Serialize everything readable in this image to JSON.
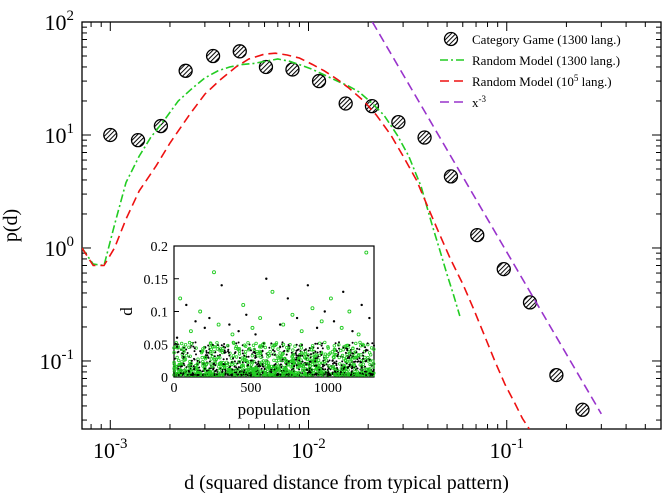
{
  "chart_data": [
    {
      "type": "scatter",
      "xlabel": "d (squared distance from typical pattern)",
      "ylabel": "p(d)",
      "xscale": "log",
      "yscale": "log",
      "xlim": [
        0.00072,
        0.6
      ],
      "ylim": [
        0.025,
        100
      ],
      "xticks": [
        {
          "value": 0.001,
          "base": "10",
          "exp": "-3"
        },
        {
          "value": 0.01,
          "base": "10",
          "exp": "-2"
        },
        {
          "value": 0.1,
          "base": "10",
          "exp": "-1"
        }
      ],
      "yticks": [
        {
          "value": 0.1,
          "base": "10",
          "exp": "-1"
        },
        {
          "value": 1,
          "base": "10",
          "exp": "0"
        },
        {
          "value": 10,
          "base": "10",
          "exp": "1"
        },
        {
          "value": 100,
          "base": "10",
          "exp": "2"
        }
      ],
      "legend_position": "top-right",
      "grid": false,
      "series": [
        {
          "name": "Category Game (1300 lang.)",
          "style": "hatched-circle",
          "color": "#000000",
          "x": [
            0.001,
            0.00138,
            0.0018,
            0.0024,
            0.0033,
            0.0045,
            0.0061,
            0.0083,
            0.0113,
            0.0154,
            0.0209,
            0.0284,
            0.0385,
            0.0523,
            0.071,
            0.0966,
            0.131,
            0.178,
            0.241
          ],
          "y": [
            10,
            9,
            12,
            37,
            50,
            55,
            40,
            38,
            30,
            19,
            18,
            13,
            9.5,
            4.3,
            1.3,
            0.65,
            0.33,
            0.075,
            0.037
          ]
        },
        {
          "name": "Random Model (1300 lang.)",
          "style": "dash-dot",
          "color": "#22cc22",
          "x": [
            0.00072,
            0.00082,
            0.00093,
            0.00105,
            0.0012,
            0.0014,
            0.0016,
            0.0019,
            0.0022,
            0.0026,
            0.003,
            0.0035,
            0.004,
            0.0046,
            0.0053,
            0.0061,
            0.007,
            0.008,
            0.009,
            0.0105,
            0.012,
            0.014,
            0.016,
            0.018,
            0.021,
            0.024,
            0.028,
            0.032,
            0.037,
            0.042,
            0.046,
            0.05,
            0.054,
            0.058
          ],
          "y": [
            1.0,
            0.72,
            0.7,
            1.6,
            3.8,
            6.5,
            9.5,
            14,
            20,
            26,
            32,
            37,
            40,
            42,
            43,
            45,
            47,
            45,
            42,
            38,
            34,
            30,
            27,
            24,
            19,
            15,
            10,
            6.5,
            3.5,
            1.6,
            0.95,
            0.58,
            0.38,
            0.25
          ]
        },
        {
          "name": "Random Model (10^5 lang.)",
          "legend_base": "Random Model (10",
          "legend_sup": "5",
          "legend_tail": " lang.)",
          "style": "dashed",
          "color": "#ee1111",
          "x": [
            0.00072,
            0.00082,
            0.00093,
            0.00105,
            0.0012,
            0.0014,
            0.0017,
            0.002,
            0.0025,
            0.003,
            0.0036,
            0.0043,
            0.005,
            0.006,
            0.0068,
            0.0078,
            0.009,
            0.0105,
            0.012,
            0.014,
            0.016,
            0.019,
            0.022,
            0.026,
            0.03,
            0.035,
            0.04,
            0.046,
            0.052,
            0.06,
            0.068,
            0.077,
            0.087,
            0.098,
            0.11,
            0.12,
            0.13
          ],
          "y": [
            1.0,
            0.7,
            0.7,
            1.0,
            1.8,
            3.2,
            5.3,
            8.5,
            15,
            23,
            31,
            40,
            47,
            52,
            53,
            51,
            48,
            42,
            37,
            31,
            26,
            20,
            15,
            10,
            6.5,
            4.0,
            2.3,
            1.3,
            0.8,
            0.48,
            0.29,
            0.17,
            0.1,
            0.062,
            0.042,
            0.031,
            0.025
          ]
        },
        {
          "name": "x^-3",
          "legend_base": "x",
          "legend_sup": "-3",
          "legend_tail": "",
          "style": "dashed",
          "color": "#9933cc",
          "x": [
            0.021,
            0.3
          ],
          "y": [
            100,
            0.034
          ]
        }
      ]
    },
    {
      "type": "scatter",
      "title": "",
      "xlabel": "population",
      "ylabel": "d",
      "xlim": [
        0,
        1300
      ],
      "ylim": [
        0,
        0.2
      ],
      "xticks": [
        0,
        500,
        1000
      ],
      "yticks": [
        0,
        0.05,
        0.1,
        0.15,
        0.2
      ],
      "ytick_labels": [
        "0",
        "0.05",
        "0.1",
        "0.15",
        "0.2"
      ],
      "series": [
        {
          "color": "#000000",
          "x": [
            20,
            80,
            140,
            200,
            230,
            310,
            360,
            420,
            470,
            530,
            600,
            690,
            740,
            800,
            870,
            930,
            980,
            1040,
            1100,
            1160,
            1220,
            1270
          ],
          "y": [
            0.06,
            0.11,
            0.085,
            0.075,
            0.09,
            0.14,
            0.08,
            0.07,
            0.095,
            0.065,
            0.15,
            0.08,
            0.12,
            0.09,
            0.14,
            0.075,
            0.1,
            0.085,
            0.13,
            0.07,
            0.11,
            0.09
          ]
        },
        {
          "color": "#22cc22",
          "x": [
            40,
            110,
            170,
            260,
            290,
            380,
            450,
            510,
            560,
            640,
            710,
            770,
            830,
            900,
            960,
            1020,
            1090,
            1140,
            1200,
            1250
          ],
          "y": [
            0.12,
            0.07,
            0.1,
            0.16,
            0.08,
            0.065,
            0.11,
            0.075,
            0.09,
            0.13,
            0.08,
            0.095,
            0.07,
            0.105,
            0.085,
            0.12,
            0.075,
            0.1,
            0.065,
            0.19
          ]
        }
      ]
    }
  ]
}
